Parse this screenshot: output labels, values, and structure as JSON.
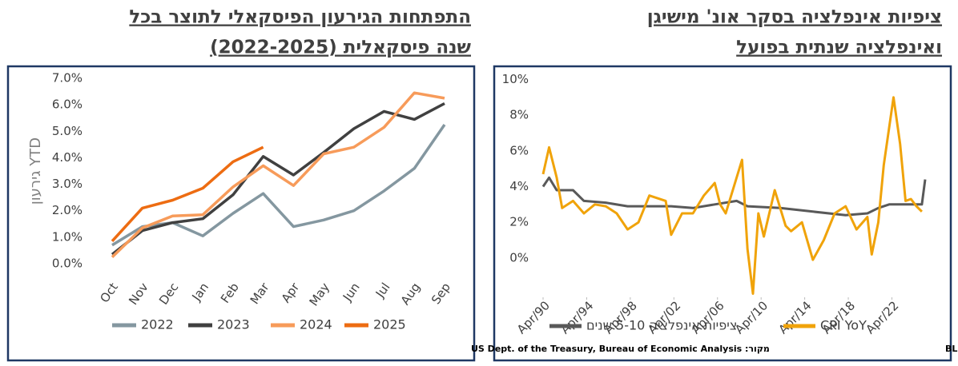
{
  "chart_data": [
    {
      "type": "line",
      "title_lines": [
        "התפתחות הגירעון הפיסקאלי לתוצר בכל",
        "שנה פיסקאלית (2022-2025)"
      ],
      "ylabel": "גירעון YTD",
      "source": "מקור: US Dept. of the Treasury, Bureau of Economic Analysis",
      "categories": [
        "Oct",
        "Nov",
        "Dec",
        "Jan",
        "Feb",
        "Mar",
        "Apr",
        "May",
        "Jun",
        "Jul",
        "Aug",
        "Sep"
      ],
      "series": [
        {
          "name": "2022",
          "color": "#8497a0",
          "values": [
            0.7,
            1.4,
            1.55,
            1.05,
            1.9,
            2.65,
            1.4,
            1.65,
            2.0,
            2.75,
            3.6,
            5.25
          ]
        },
        {
          "name": "2023",
          "color": "#404040",
          "values": [
            0.35,
            1.25,
            1.55,
            1.7,
            2.6,
            4.05,
            3.35,
            4.2,
            5.1,
            5.75,
            5.45,
            6.05
          ]
        },
        {
          "name": "2024",
          "color": "#f79b5a",
          "values": [
            0.25,
            1.35,
            1.8,
            1.85,
            2.9,
            3.7,
            2.95,
            4.15,
            4.4,
            5.15,
            6.45,
            6.25
          ]
        },
        {
          "name": "2025",
          "color": "#ed6c12",
          "values": [
            0.85,
            2.1,
            2.4,
            2.85,
            3.85,
            4.4,
            null,
            null,
            null,
            null,
            null,
            null
          ]
        }
      ],
      "ylim": [
        0,
        7
      ],
      "yticks": [
        {
          "value": 0,
          "label": "0.0%"
        },
        {
          "value": 1,
          "label": "1.0%"
        },
        {
          "value": 2,
          "label": "2.0%"
        },
        {
          "value": 3,
          "label": "3.0%"
        },
        {
          "value": 4,
          "label": "4.0%"
        },
        {
          "value": 5,
          "label": "5.0%"
        },
        {
          "value": 6,
          "label": "6.0%"
        },
        {
          "value": 7,
          "label": "7.0%"
        }
      ],
      "legend": "bottom"
    },
    {
      "type": "line",
      "title_lines": [
        "ציפיות אינפלציה בסקר אונ' מישיגן",
        "ואינפלציה שנתית בפועל"
      ],
      "source": "מקור: BLS, UMich Survey Research Center",
      "series": [
        {
          "name": "ציפיות אינפלציה 5-10 שנים",
          "color": "#595959",
          "x": [
            1990.25,
            1990.8,
            1991.5,
            1993,
            1994,
            1996,
            1998,
            2000,
            2002,
            2004,
            2006,
            2008,
            2009,
            2012,
            2015,
            2018,
            2020,
            2021,
            2022,
            2024,
            2025,
            2025.3
          ],
          "values": [
            4.0,
            4.5,
            3.8,
            3.8,
            3.2,
            3.1,
            2.9,
            2.9,
            2.9,
            2.8,
            3.0,
            3.2,
            2.9,
            2.8,
            2.6,
            2.4,
            2.5,
            2.8,
            3.0,
            3.0,
            3.0,
            4.4
          ]
        },
        {
          "name": "CPI YoY",
          "color": "#f0a30a",
          "x": [
            1990.25,
            1990.8,
            1991.5,
            1992,
            1993,
            1994,
            1995,
            1996,
            1997,
            1998,
            1999,
            2000,
            2001.5,
            2002,
            2003,
            2004,
            2005,
            2006,
            2006.5,
            2007,
            2008.5,
            2009,
            2009.5,
            2010,
            2010.5,
            2011.5,
            2012.5,
            2013,
            2014,
            2015,
            2016,
            2017,
            2018,
            2019,
            2020,
            2020.4,
            2021,
            2021.5,
            2022.4,
            2023,
            2023.5,
            2024,
            2024.5,
            2025
          ],
          "values": [
            4.7,
            6.2,
            4.5,
            2.8,
            3.2,
            2.5,
            3.0,
            2.9,
            2.5,
            1.6,
            2.0,
            3.5,
            3.2,
            1.3,
            2.5,
            2.5,
            3.5,
            4.2,
            3.0,
            2.5,
            5.5,
            0.5,
            -2.0,
            2.5,
            1.2,
            3.8,
            1.8,
            1.5,
            2.0,
            -0.1,
            1.0,
            2.5,
            2.9,
            1.6,
            2.3,
            0.2,
            2.0,
            5.2,
            9.0,
            6.4,
            3.2,
            3.3,
            2.9,
            2.6
          ]
        }
      ],
      "xlim": [
        1990.25,
        2025.3
      ],
      "xticks": [
        {
          "value": 1990.25,
          "label": "Apr/90"
        },
        {
          "value": 1994.25,
          "label": "Apr/94"
        },
        {
          "value": 1998.25,
          "label": "Apr/98"
        },
        {
          "value": 2002.25,
          "label": "Apr/02"
        },
        {
          "value": 2006.25,
          "label": "Apr/06"
        },
        {
          "value": 2010.25,
          "label": "Apr/10"
        },
        {
          "value": 2014.25,
          "label": "Apr/14"
        },
        {
          "value": 2018.25,
          "label": "Apr/18"
        },
        {
          "value": 2022.25,
          "label": "Apr/22"
        }
      ],
      "ylim": [
        -2.2,
        10.2
      ],
      "yticks": [
        {
          "value": 0,
          "label": "0%"
        },
        {
          "value": 2,
          "label": "2%"
        },
        {
          "value": 4,
          "label": "4%"
        },
        {
          "value": 6,
          "label": "6%"
        },
        {
          "value": 8,
          "label": "8%"
        },
        {
          "value": 10,
          "label": "10%"
        }
      ],
      "legend": "bottom"
    }
  ]
}
